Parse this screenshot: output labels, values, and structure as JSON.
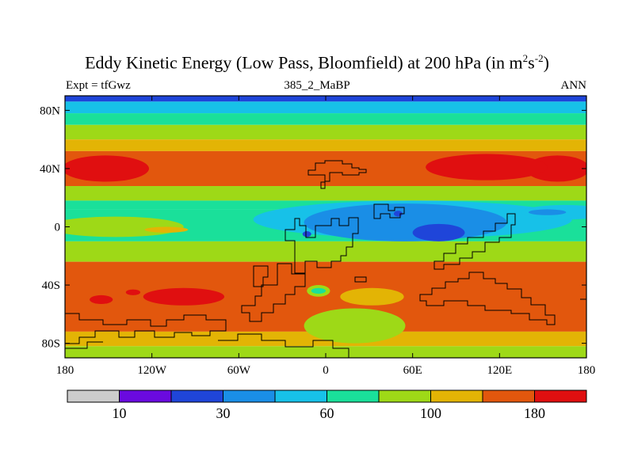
{
  "chart_data": {
    "type": "heatmap",
    "title_main": "Eddy Kinetic Energy (Low Pass, Bloomfield) at 200 hPa (in m",
    "title_sup1": "2",
    "title_mid": "s",
    "title_sup2": "-2",
    "title_end": ")",
    "subtitle_left": "Expt = tfGwz",
    "subtitle_center": "385_2_MaBP",
    "subtitle_right": "ANN",
    "x_range": [
      -180,
      180
    ],
    "y_range": [
      -90,
      90
    ],
    "x_ticks": [
      {
        "value": -180,
        "label": "180"
      },
      {
        "value": -120,
        "label": "120W"
      },
      {
        "value": -60,
        "label": "60W"
      },
      {
        "value": 0,
        "label": "0"
      },
      {
        "value": 60,
        "label": "60E"
      },
      {
        "value": 120,
        "label": "120E"
      },
      {
        "value": 180,
        "label": "180"
      }
    ],
    "y_ticks": [
      {
        "value": 80,
        "label": "80N"
      },
      {
        "value": 40,
        "label": "40N"
      },
      {
        "value": 0,
        "label": "0"
      },
      {
        "value": -40,
        "label": "40S"
      },
      {
        "value": -80,
        "label": "80S"
      }
    ],
    "colorbar": {
      "colors": [
        "#cccccc",
        "#6a0adf",
        "#1f45d9",
        "#1a8ee6",
        "#17c1e8",
        "#1ae09a",
        "#9ed917",
        "#e3b405",
        "#e2570d",
        "#e00f10"
      ],
      "labels": [
        {
          "boundary": 1,
          "label": "10"
        },
        {
          "boundary": 3,
          "label": "30"
        },
        {
          "boundary": 5,
          "label": "60"
        },
        {
          "boundary": 7,
          "label": "100"
        },
        {
          "boundary": 9,
          "label": "180"
        }
      ]
    },
    "latitude_bands": [
      {
        "lat_top": 90,
        "lat_bottom": 86,
        "level": 2
      },
      {
        "lat_top": 86,
        "lat_bottom": 78,
        "level": 4
      },
      {
        "lat_top": 78,
        "lat_bottom": 70,
        "level": 5
      },
      {
        "lat_top": 70,
        "lat_bottom": 60,
        "level": 6
      },
      {
        "lat_top": 60,
        "lat_bottom": 52,
        "level": 7
      },
      {
        "lat_top": 52,
        "lat_bottom": 28,
        "level": 8
      },
      {
        "lat_top": 28,
        "lat_bottom": 18,
        "level": 6
      },
      {
        "lat_top": 18,
        "lat_bottom": 12,
        "level": 5
      },
      {
        "lat_top": 12,
        "lat_bottom": -10,
        "level": 5
      },
      {
        "lat_top": -10,
        "lat_bottom": -24,
        "level": 6
      },
      {
        "lat_top": -24,
        "lat_bottom": -72,
        "level": 8
      },
      {
        "lat_top": -72,
        "lat_bottom": -82,
        "level": 7
      },
      {
        "lat_top": -82,
        "lat_bottom": -90,
        "level": 6
      }
    ],
    "features": [
      {
        "level": 9,
        "lon": -152,
        "lat": 40,
        "rlon": 30,
        "rlat": 9
      },
      {
        "level": 9,
        "lon": 160,
        "lat": 40,
        "rlon": 22,
        "rlat": 9
      },
      {
        "level": 9,
        "lon": 111,
        "lat": 41,
        "rlon": 42,
        "rlat": 9
      },
      {
        "level": 9,
        "lon": -98,
        "lat": -48,
        "rlon": 28,
        "rlat": 6
      },
      {
        "level": 9,
        "lon": -155,
        "lat": -50,
        "rlon": 8,
        "rlat": 3
      },
      {
        "level": 9,
        "lon": -133,
        "lat": -45,
        "rlon": 5,
        "rlat": 2
      },
      {
        "level": 4,
        "lon": 60,
        "lat": 5,
        "rlon": 110,
        "rlat": 13
      },
      {
        "level": 4,
        "lon": 165,
        "lat": 10,
        "rlon": 30,
        "rlat": 5
      },
      {
        "level": 3,
        "lon": 55,
        "lat": 3,
        "rlon": 70,
        "rlat": 13
      },
      {
        "level": 3,
        "lon": 153,
        "lat": 10,
        "rlon": 13,
        "rlat": 2
      },
      {
        "level": 2,
        "lon": 78,
        "lat": -4,
        "rlon": 18,
        "rlat": 6
      },
      {
        "level": 2,
        "lon": -13,
        "lat": -5,
        "rlon": 3,
        "rlat": 2
      },
      {
        "level": 2,
        "lon": 50,
        "lat": 9,
        "rlon": 3,
        "rlat": 2
      },
      {
        "level": 6,
        "lon": -145,
        "lat": 0,
        "rlon": 47,
        "rlat": 7
      },
      {
        "level": 7,
        "lon": -110,
        "lat": -2,
        "rlon": 15,
        "rlat": 2
      },
      {
        "level": 6,
        "lon": 20,
        "lat": -68,
        "rlon": 35,
        "rlat": 12
      },
      {
        "level": 7,
        "lon": 32,
        "lat": -48,
        "rlon": 22,
        "rlat": 6
      },
      {
        "level": 6,
        "lon": -5,
        "lat": -44,
        "rlon": 8,
        "rlat": 4
      },
      {
        "level": 5,
        "lon": -5,
        "lat": -44,
        "rlon": 5,
        "rlat": 2
      }
    ]
  }
}
